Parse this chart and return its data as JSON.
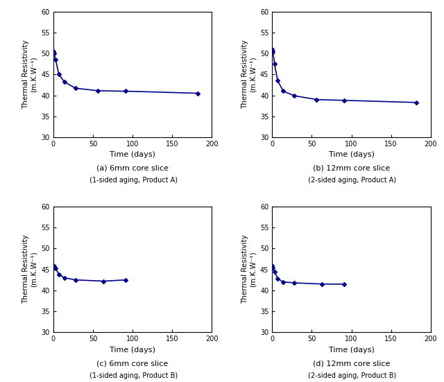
{
  "subplots": [
    {
      "label": "(a) 6mm core slice",
      "sublabel": " (1-sided aging, Product A)",
      "x": [
        0,
        1,
        3,
        7,
        14,
        28,
        56,
        91,
        182
      ],
      "y": [
        50.5,
        50.0,
        48.5,
        45.0,
        43.2,
        41.7,
        41.1,
        41.0,
        40.5
      ],
      "xlim": [
        0,
        200
      ],
      "ylim": [
        30,
        60
      ],
      "xticks": [
        0,
        50,
        100,
        150,
        200
      ],
      "yticks": [
        30,
        35,
        40,
        45,
        50,
        55,
        60
      ]
    },
    {
      "label": "(b) 12mm core slice",
      "sublabel": " (2-sided aging, Product A)",
      "x": [
        0,
        1,
        3,
        7,
        14,
        28,
        56,
        91,
        182
      ],
      "y": [
        51.0,
        50.5,
        47.5,
        43.5,
        41.0,
        39.9,
        39.0,
        38.8,
        38.3
      ],
      "xlim": [
        0,
        200
      ],
      "ylim": [
        30,
        60
      ],
      "xticks": [
        0,
        50,
        100,
        150,
        200
      ],
      "yticks": [
        30,
        35,
        40,
        45,
        50,
        55,
        60
      ]
    },
    {
      "label": "(c) 6mm core slice",
      "sublabel": " (1-sided aging, Product B)",
      "x": [
        0,
        1,
        3,
        7,
        14,
        28,
        63,
        91
      ],
      "y": [
        46.0,
        45.7,
        45.2,
        43.8,
        43.0,
        42.5,
        42.2,
        42.5
      ],
      "xlim": [
        0,
        200
      ],
      "ylim": [
        30,
        60
      ],
      "xticks": [
        0,
        50,
        100,
        150,
        200
      ],
      "yticks": [
        30,
        35,
        40,
        45,
        50,
        55,
        60
      ]
    },
    {
      "label": "(d) 12mm core slice",
      "sublabel": " (2-sided aging, Product B)",
      "x": [
        0,
        1,
        3,
        7,
        14,
        28,
        63,
        91
      ],
      "y": [
        46.0,
        45.5,
        44.5,
        42.8,
        42.0,
        41.8,
        41.5,
        41.5
      ],
      "xlim": [
        0,
        200
      ],
      "ylim": [
        30,
        60
      ],
      "xticks": [
        0,
        50,
        100,
        150,
        200
      ],
      "yticks": [
        30,
        35,
        40,
        45,
        50,
        55,
        60
      ]
    }
  ],
  "line_color": "#00008B",
  "marker": "D",
  "marker_size": 3,
  "line_width": 1.2,
  "xlabel": "Time (days)",
  "ylabel_line1": "Thermal Resistivity",
  "ylabel_line2": "(m.K.W⁻¹)",
  "label_fontsize": 8,
  "sublabel_fontsize": 7,
  "tick_fontsize": 7,
  "axis_label_fontsize": 8,
  "ylabel_fontsize": 7.5
}
